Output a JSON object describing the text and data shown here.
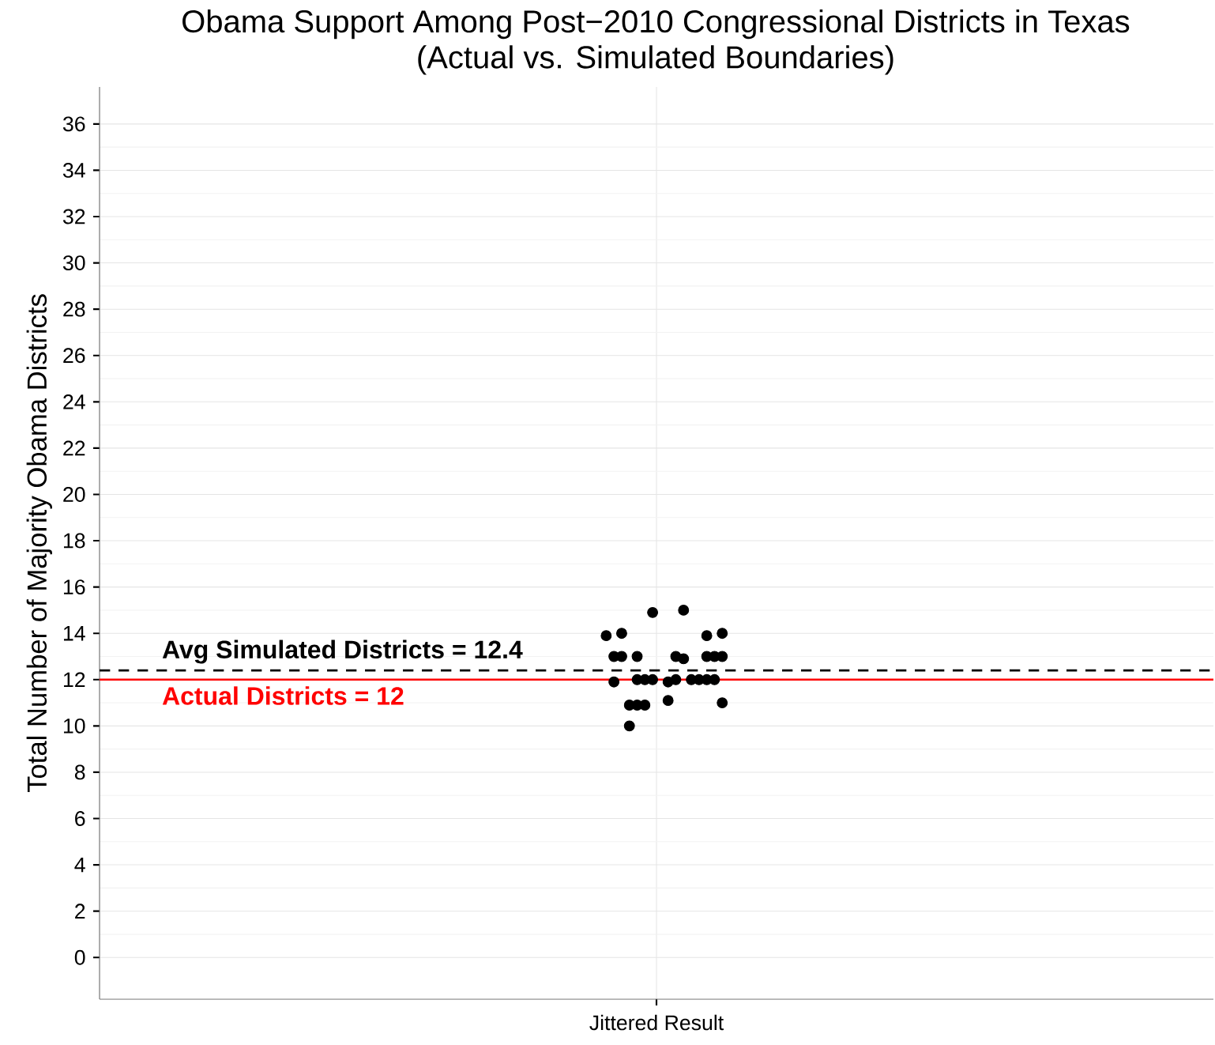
{
  "chart_data": {
    "type": "scatter",
    "title": "Obama Support Among Post−2010 Congressional Districts in Texas",
    "subtitle": "(Actual vs. Simulated Boundaries)",
    "ylabel": "Total Number of Majority Obama Districts",
    "xlabel": "Jittered Result",
    "categories": [
      null,
      null,
      null,
      null,
      null,
      null,
      null,
      null,
      null,
      null,
      null,
      null,
      null,
      null,
      null,
      null,
      null,
      null,
      null,
      null,
      null,
      null,
      null,
      null,
      null,
      null,
      null,
      null,
      null,
      null,
      null,
      null,
      null,
      null,
      null,
      null,
      null,
      null,
      null,
      null,
      null,
      null,
      null,
      null,
      null,
      null,
      null,
      null,
      null,
      null,
      null,
      null,
      null,
      null,
      null,
      null,
      null,
      null,
      null,
      null,
      null,
      null,
      null,
      null,
      null,
      null,
      null,
      null,
      null,
      null,
      null,
      null,
      null,
      null,
      null,
      null,
      null,
      null,
      null,
      null,
      null,
      null,
      null,
      null,
      null,
      null,
      null,
      null,
      null,
      null,
      null,
      null,
      null,
      null,
      null,
      null,
      null,
      null,
      null,
      null,
      null,
      null,
      null,
      null,
      null,
      null,
      null,
      null,
      null,
      null,
      null,
      null,
      null,
      null,
      null,
      null,
      null,
      null,
      null,
      null,
      null,
      null,
      null,
      null,
      null,
      null,
      null,
      null,
      null,
      null,
      null,
      null,
      null,
      null,
      null,
      null,
      null,
      null,
      null,
      null,
      null,
      null,
      null,
      null
    ],
    "series": [
      {
        "color": "#000000",
        "values": [
          null,
          null,
          null,
          null,
          null,
          null,
          null,
          null,
          null,
          null,
          null,
          null,
          null,
          null,
          null,
          null,
          null,
          null,
          null,
          null,
          null,
          null,
          null,
          null,
          null,
          null,
          null,
          null,
          null,
          null,
          null,
          null,
          null,
          null,
          null,
          null,
          null,
          null,
          null,
          null,
          null,
          null,
          null,
          null,
          null,
          null,
          null,
          null,
          null,
          null,
          null,
          null,
          null,
          null,
          null,
          null,
          null,
          null,
          null,
          null,
          null,
          null,
          null,
          null,
          null,
          13.9,
          13.0,
          13.0,
          10.0,
          12.0,
          12.0,
          14.9,
          null,
          11.9,
          13.0,
          15.0,
          12.0,
          12.0,
          13.0,
          13.0,
          11.0,
          null,
          null,
          null,
          null,
          null,
          null,
          null,
          null,
          null,
          null,
          null,
          null,
          null,
          null,
          null,
          null,
          null,
          null,
          null,
          null,
          null,
          null,
          null,
          null,
          null,
          null,
          null,
          null,
          null,
          null,
          null,
          null,
          null,
          null,
          null,
          null,
          null,
          null,
          null,
          null,
          null,
          null,
          null,
          null,
          null,
          null,
          null,
          null,
          null,
          null,
          null,
          null,
          null,
          null,
          null,
          null,
          null,
          null,
          null,
          null,
          null,
          null,
          null
        ]
      },
      {
        "color": "#000000",
        "values": [
          null,
          null,
          null,
          null,
          null,
          null,
          null,
          null,
          null,
          null,
          null,
          null,
          null,
          null,
          null,
          null,
          null,
          null,
          null,
          null,
          null,
          null,
          null,
          null,
          null,
          null,
          null,
          null,
          null,
          null,
          null,
          null,
          null,
          null,
          null,
          null,
          null,
          null,
          null,
          null,
          null,
          null,
          null,
          null,
          null,
          null,
          null,
          null,
          null,
          null,
          null,
          null,
          null,
          null,
          null,
          null,
          null,
          null,
          null,
          null,
          null,
          null,
          null,
          null,
          null,
          null,
          11.9,
          14.0,
          10.9,
          13.0,
          10.9,
          12.0,
          null,
          11.1,
          12.0,
          12.9,
          null,
          null,
          12.0,
          12.0,
          14.0,
          null,
          null,
          null,
          null,
          null,
          null,
          null,
          null,
          null,
          null,
          null,
          null,
          null,
          null,
          null,
          null,
          null,
          null,
          null,
          null,
          null,
          null,
          null,
          null,
          null,
          null,
          null,
          null,
          null,
          null,
          null,
          null,
          null,
          null,
          null,
          null,
          null,
          null,
          null,
          null,
          null,
          null,
          null,
          null,
          null,
          null,
          null,
          null,
          null,
          null,
          null,
          null,
          null,
          null,
          null,
          null,
          null,
          null,
          null,
          null,
          null,
          null,
          null
        ]
      },
      {
        "color": "#000000",
        "values": [
          null,
          null,
          null,
          null,
          null,
          null,
          null,
          null,
          null,
          null,
          null,
          null,
          null,
          null,
          null,
          null,
          null,
          null,
          null,
          null,
          null,
          null,
          null,
          null,
          null,
          null,
          null,
          null,
          null,
          null,
          null,
          null,
          null,
          null,
          null,
          null,
          null,
          null,
          null,
          null,
          null,
          null,
          null,
          null,
          null,
          null,
          null,
          null,
          null,
          null,
          null,
          null,
          null,
          null,
          null,
          null,
          null,
          null,
          null,
          null,
          null,
          null,
          null,
          null,
          null,
          null,
          null,
          null,
          null,
          10.9,
          null,
          null,
          null,
          null,
          null,
          null,
          null,
          null,
          13.9,
          null,
          13.0,
          null,
          null,
          null,
          null,
          null,
          null,
          null,
          null,
          null,
          null,
          null,
          null,
          null,
          null,
          null,
          null,
          null,
          null,
          null,
          null,
          null,
          null,
          null,
          null,
          null,
          null,
          null,
          null,
          null,
          null,
          null,
          null,
          null,
          null,
          null,
          null,
          null,
          null,
          null,
          null,
          null,
          null,
          null,
          null,
          null,
          null,
          null,
          null,
          null,
          null,
          null,
          null,
          null,
          null,
          null,
          null,
          null,
          null,
          null,
          null,
          null,
          null,
          null
        ]
      }
    ],
    "ylim": [
      -1.8,
      37.6
    ],
    "yticks": [
      0,
      2,
      4,
      6,
      8,
      10,
      12,
      14,
      16,
      18,
      20,
      22,
      24,
      26,
      28,
      30,
      32,
      34,
      36
    ],
    "grid": true,
    "ref_lines": [
      {
        "axis": "y",
        "value": 12.4,
        "label": "Avg Simulated Districts = 12.4",
        "color": "#000000",
        "line_style": "dashed"
      },
      {
        "axis": "y",
        "value": 12,
        "label": "Actual Districts = 12",
        "color": "#ff0000",
        "line_style": "solid"
      }
    ]
  }
}
